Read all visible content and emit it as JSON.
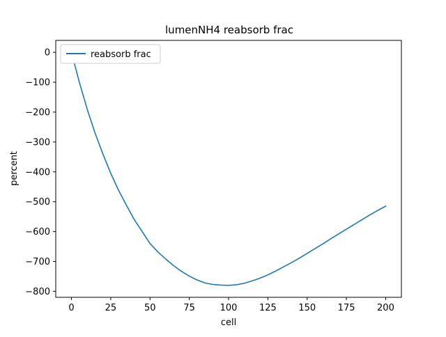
{
  "chart_data": {
    "type": "line",
    "title": "lumenNH4 reabsorb frac",
    "xlabel": "cell",
    "ylabel": "percent",
    "xlim": [
      -10,
      210
    ],
    "ylim": [
      -820,
      40
    ],
    "x_ticks": [
      0,
      25,
      50,
      75,
      100,
      125,
      150,
      175,
      200
    ],
    "y_ticks": [
      0,
      -100,
      -200,
      -300,
      -400,
      -500,
      -600,
      -700,
      -800
    ],
    "x_tick_labels": [
      "0",
      "25",
      "50",
      "75",
      "100",
      "125",
      "150",
      "175",
      "200"
    ],
    "y_tick_labels": [
      "0",
      "−100",
      "−200",
      "−300",
      "−400",
      "−500",
      "−600",
      "−700",
      "−800"
    ],
    "grid": false,
    "legend_position": "upper left",
    "series": [
      {
        "name": "reabsorb frac",
        "color": "#1f77b4",
        "x": [
          0,
          2,
          5,
          10,
          15,
          20,
          25,
          30,
          35,
          40,
          45,
          50,
          55,
          60,
          65,
          70,
          75,
          80,
          85,
          90,
          95,
          100,
          105,
          110,
          115,
          120,
          125,
          130,
          135,
          140,
          145,
          150,
          155,
          160,
          165,
          170,
          175,
          180,
          185,
          190,
          195,
          200
        ],
        "y": [
          0,
          -40,
          -100,
          -190,
          -270,
          -340,
          -405,
          -462,
          -512,
          -560,
          -600,
          -640,
          -668,
          -692,
          -714,
          -733,
          -749,
          -762,
          -772,
          -777,
          -779,
          -780,
          -778,
          -773,
          -765,
          -756,
          -745,
          -732,
          -718,
          -704,
          -689,
          -673,
          -657,
          -641,
          -624,
          -608,
          -592,
          -576,
          -560,
          -544,
          -529,
          -515
        ]
      }
    ]
  }
}
